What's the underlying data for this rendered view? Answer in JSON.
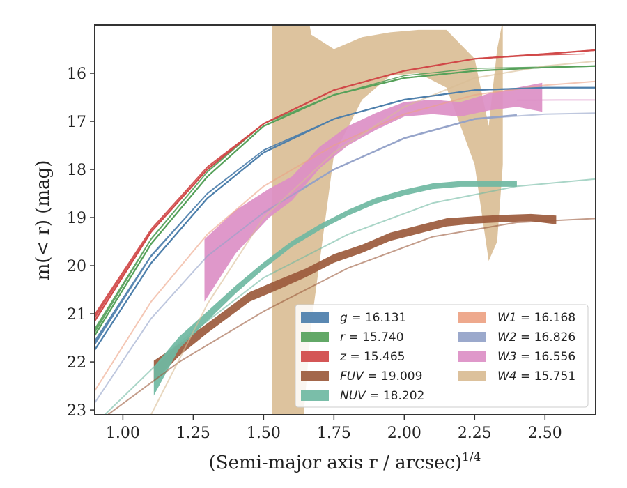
{
  "chart_data": {
    "type": "line",
    "xlabel": "(Semi-major axis r / arcsec)",
    "xlabel_sup": "1/4",
    "ylabel": "m(< r) (mag)",
    "xlim": [
      0.9,
      2.68
    ],
    "ylim": [
      23.1,
      15.0
    ],
    "y_inverted": true,
    "grid": false,
    "legend_position": "lower-right",
    "x_ticks": [
      "1.00",
      "1.25",
      "1.50",
      "1.75",
      "2.00",
      "2.25",
      "2.50"
    ],
    "y_ticks": [
      "16",
      "17",
      "18",
      "19",
      "20",
      "21",
      "22",
      "23"
    ],
    "series": [
      {
        "name": "g",
        "value_label": "16.131",
        "color": "#4c7eab",
        "band_x": [
          0.9,
          1.1,
          1.3,
          1.5,
          1.75,
          2.0,
          2.25,
          2.5,
          2.58
        ],
        "band_y": [
          21.6,
          19.8,
          18.5,
          17.6,
          16.95,
          16.55,
          16.35,
          16.3,
          16.3
        ],
        "band_w": [
          0.12,
          0.06,
          0.04,
          0.03,
          0.02,
          0.02,
          0.02,
          0.02,
          0.02
        ],
        "model_x": [
          0.9,
          1.1,
          1.3,
          1.5,
          1.75,
          2.0,
          2.25,
          2.5,
          2.68
        ],
        "model_y": [
          21.75,
          19.95,
          18.6,
          17.65,
          16.95,
          16.55,
          16.35,
          16.3,
          16.3
        ]
      },
      {
        "name": "r",
        "value_label": "15.740",
        "color": "#55a15a",
        "band_x": [
          0.9,
          1.1,
          1.3,
          1.5,
          1.75,
          2.0,
          2.25,
          2.5,
          2.62
        ],
        "band_y": [
          21.35,
          19.45,
          18.05,
          17.05,
          16.45,
          16.05,
          15.9,
          15.87,
          15.86
        ],
        "band_w": [
          0.12,
          0.05,
          0.04,
          0.03,
          0.02,
          0.02,
          0.02,
          0.02,
          0.02
        ],
        "model_x": [
          0.9,
          1.1,
          1.3,
          1.5,
          1.75,
          2.0,
          2.25,
          2.5,
          2.68
        ],
        "model_y": [
          21.45,
          19.55,
          18.15,
          17.1,
          16.45,
          16.1,
          15.95,
          15.88,
          15.85
        ]
      },
      {
        "name": "z",
        "value_label": "15.465",
        "color": "#d04848",
        "band_x": [
          0.9,
          1.1,
          1.3,
          1.5,
          1.75,
          2.0,
          2.25,
          2.5,
          2.64
        ],
        "band_y": [
          21.05,
          19.25,
          17.95,
          17.05,
          16.35,
          15.95,
          15.7,
          15.62,
          15.6
        ],
        "band_w": [
          0.12,
          0.05,
          0.04,
          0.03,
          0.02,
          0.02,
          0.02,
          0.02,
          0.02
        ],
        "model_x": [
          0.9,
          1.1,
          1.3,
          1.5,
          1.75,
          2.0,
          2.25,
          2.5,
          2.68
        ],
        "model_y": [
          21.15,
          19.3,
          18.0,
          17.05,
          16.35,
          15.95,
          15.7,
          15.6,
          15.52
        ]
      },
      {
        "name": "FUV",
        "value_label": "19.009",
        "color": "#9b5a3c",
        "band_x": [
          1.11,
          1.2,
          1.3,
          1.45,
          1.55,
          1.65,
          1.75,
          1.85,
          1.95,
          2.05,
          2.15,
          2.25,
          2.35,
          2.45,
          2.54
        ],
        "band_y": [
          22.2,
          21.75,
          21.3,
          20.65,
          20.4,
          20.15,
          19.85,
          19.65,
          19.4,
          19.25,
          19.1,
          19.05,
          19.02,
          19.0,
          19.05
        ],
        "band_w": [
          0.45,
          0.25,
          0.2,
          0.2,
          0.2,
          0.18,
          0.18,
          0.17,
          0.17,
          0.17,
          0.17,
          0.15,
          0.15,
          0.15,
          0.18
        ],
        "model_x": [
          0.9,
          1.2,
          1.5,
          1.8,
          2.1,
          2.4,
          2.68
        ],
        "model_y": [
          23.3,
          22.0,
          20.95,
          20.05,
          19.4,
          19.1,
          19.02
        ]
      },
      {
        "name": "NUV",
        "value_label": "18.202",
        "color": "#6fb9a2",
        "band_x": [
          1.11,
          1.2,
          1.3,
          1.4,
          1.5,
          1.6,
          1.7,
          1.8,
          1.9,
          2.0,
          2.1,
          2.2,
          2.3,
          2.4
        ],
        "band_y": [
          22.4,
          21.6,
          21.05,
          20.5,
          20.0,
          19.55,
          19.2,
          18.9,
          18.65,
          18.48,
          18.35,
          18.3,
          18.3,
          18.3
        ],
        "band_w": [
          0.6,
          0.25,
          0.2,
          0.16,
          0.14,
          0.12,
          0.12,
          0.12,
          0.12,
          0.12,
          0.12,
          0.12,
          0.12,
          0.12
        ],
        "model_x": [
          0.9,
          1.2,
          1.5,
          1.8,
          2.1,
          2.4,
          2.68
        ],
        "model_y": [
          23.3,
          21.6,
          20.25,
          19.35,
          18.7,
          18.35,
          18.2
        ]
      },
      {
        "name": "W1",
        "value_label": "16.168",
        "color": "#eda283",
        "band_x": [],
        "band_y": [],
        "band_w": [],
        "model_x": [
          0.9,
          1.1,
          1.3,
          1.5,
          1.75,
          2.0,
          2.25,
          2.5,
          2.68
        ],
        "model_y": [
          22.6,
          20.75,
          19.35,
          18.35,
          17.5,
          16.85,
          16.45,
          16.25,
          16.17
        ]
      },
      {
        "name": "W2",
        "value_label": "16.826",
        "color": "#93a2c8",
        "band_x": [
          1.5,
          1.75,
          2.0,
          2.25,
          2.4
        ],
        "band_y": [
          18.9,
          18.0,
          17.35,
          16.95,
          16.87
        ],
        "band_w": [
          0.06,
          0.04,
          0.04,
          0.04,
          0.04
        ],
        "model_x": [
          0.9,
          1.1,
          1.3,
          1.5,
          1.75,
          2.0,
          2.25,
          2.5,
          2.68
        ],
        "model_y": [
          22.85,
          21.1,
          19.8,
          18.9,
          18.0,
          17.35,
          16.95,
          16.85,
          16.83
        ]
      },
      {
        "name": "W3",
        "value_label": "16.556",
        "color": "#dc8fc6",
        "band_x": [
          1.29,
          1.4,
          1.52,
          1.6,
          1.7,
          1.8,
          1.9,
          2.0,
          2.1,
          2.2,
          2.3,
          2.4,
          2.49
        ],
        "band_y": [
          20.1,
          19.3,
          18.7,
          18.4,
          17.75,
          17.3,
          17.0,
          16.75,
          16.7,
          16.75,
          16.6,
          16.5,
          16.5
        ],
        "band_w": [
          1.3,
          0.9,
          0.6,
          0.5,
          0.45,
          0.4,
          0.35,
          0.3,
          0.3,
          0.3,
          0.35,
          0.4,
          0.6
        ],
        "model_x": [
          2.4,
          2.55,
          2.68
        ],
        "model_y": [
          16.56,
          16.556,
          16.556
        ]
      },
      {
        "name": "W4",
        "value_label": "15.751",
        "color": "#d9bc94",
        "band_x": [
          1.53,
          1.58,
          1.63,
          1.67,
          1.75,
          1.85,
          1.95,
          2.05,
          2.15,
          2.25,
          2.3,
          2.33,
          2.35
        ],
        "band_y": [
          19.5,
          19.2,
          18.95,
          18.2,
          16.6,
          15.9,
          15.6,
          15.55,
          15.7,
          16.8,
          18.5,
          17.5,
          16.4
        ],
        "band_w": [
          10.0,
          10.0,
          10.0,
          6.0,
          2.2,
          1.3,
          0.9,
          0.9,
          1.2,
          2.2,
          2.8,
          4.0,
          3.0
        ],
        "model_x": [
          1.1,
          1.3,
          1.5,
          1.75,
          2.0,
          2.25,
          2.5,
          2.68
        ],
        "model_y": [
          23.1,
          20.8,
          19.0,
          17.65,
          16.7,
          16.1,
          15.85,
          15.751
        ]
      }
    ]
  }
}
